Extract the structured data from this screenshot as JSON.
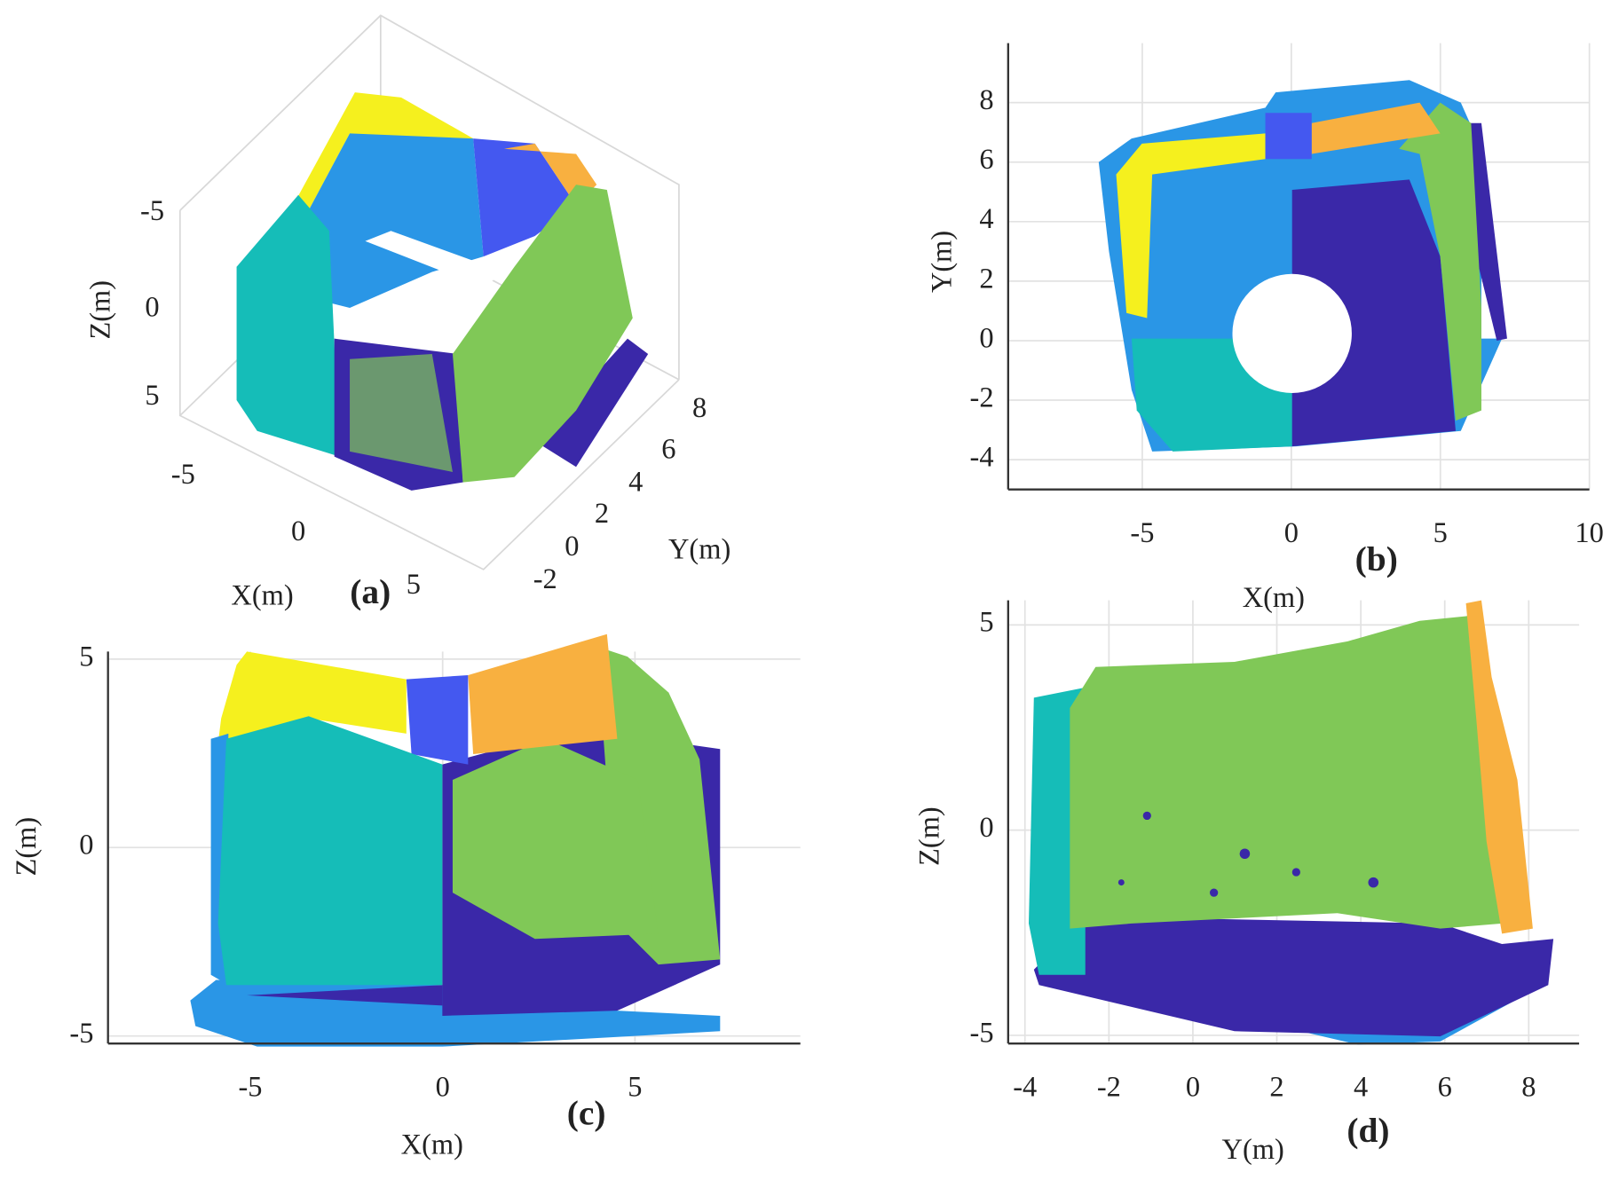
{
  "chart_data": [
    {
      "type": "scatter3d",
      "panel": "(a)",
      "xlabel": "X(m)",
      "ylabel": "Y(m)",
      "zlabel": "Z(m)",
      "xticks": [
        -5,
        0,
        5
      ],
      "yticks": [
        -2,
        0,
        2,
        4,
        6,
        8
      ],
      "zticks": [
        -5,
        0,
        5
      ]
    },
    {
      "type": "scatter",
      "panel": "(b)",
      "xlabel": "X(m)",
      "ylabel": "Y(m)",
      "xlim": [
        -9.5,
        10
      ],
      "ylim": [
        -5,
        10
      ],
      "xticks": [
        -5,
        0,
        5,
        10
      ],
      "yticks": [
        -4,
        -2,
        0,
        2,
        4,
        6,
        8
      ],
      "grid": true
    },
    {
      "type": "scatter",
      "panel": "(c)",
      "xlabel": "X(m)",
      "ylabel": "Z(m)",
      "xlim": [
        -8.7,
        9.3
      ],
      "ylim": [
        -5.2,
        5.2
      ],
      "xticks": [
        -5,
        0,
        5
      ],
      "yticks": [
        -5,
        0,
        5
      ],
      "grid": true
    },
    {
      "type": "scatter",
      "panel": "(d)",
      "xlabel": "Y(m)",
      "ylabel": "Z(m)",
      "xlim": [
        -4.4,
        9.2
      ],
      "ylim": [
        -5.2,
        5.6
      ],
      "xticks": [
        -4,
        -2,
        0,
        2,
        4,
        6,
        8
      ],
      "yticks": [
        -5,
        0,
        5
      ],
      "grid": true
    }
  ]
}
